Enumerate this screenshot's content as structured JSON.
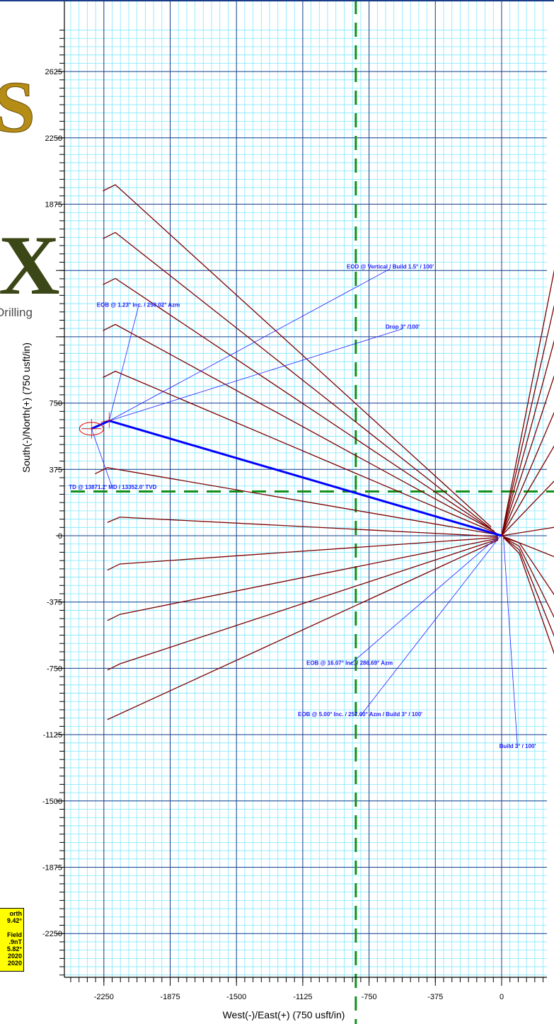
{
  "chart_data": {
    "type": "line",
    "title": "",
    "xlabel": "West(-)/East(+) (750 usft/in)",
    "ylabel": "South(-)/North(+) (750 usft/in)",
    "xlim": [
      -2400,
      375
    ],
    "ylim": [
      -2500,
      2800
    ],
    "x_ticks": [
      -2250,
      -1875,
      -1500,
      -1125,
      -750,
      -375,
      0
    ],
    "x_tick_labels": [
      "-2250",
      "-1875",
      "-1500",
      "-1125",
      "-750",
      "-375",
      "0"
    ],
    "y_ticks": [
      2625,
      2250,
      1875,
      750,
      375,
      0,
      -375,
      -750,
      -1125,
      -1500,
      -1875,
      -2250
    ],
    "y_tick_labels": [
      "2625",
      "2250",
      "1875",
      "750",
      "375",
      "0",
      "-375",
      "-750",
      "-1125",
      "-1500",
      "-1875",
      "-2250"
    ],
    "grid": true,
    "grid_colors": {
      "minor": "#7fe7ff",
      "major": "#1a3d8a"
    },
    "main_well": {
      "color": "#0000ff",
      "x": [
        0,
        -2220,
        -2320
      ],
      "y": [
        0,
        650,
        605
      ]
    },
    "offset_wells": {
      "color": "#7b0000",
      "wells": [
        {
          "x": [
            -60,
            -2185,
            -2255
          ],
          "y": [
            50,
            1985,
            1950
          ]
        },
        {
          "x": [
            -60,
            -2185,
            -2255
          ],
          "y": [
            40,
            1715,
            1680
          ]
        },
        {
          "x": [
            -50,
            -2185,
            -2255
          ],
          "y": [
            30,
            1455,
            1420
          ]
        },
        {
          "x": [
            -40,
            -2185,
            -2255
          ],
          "y": [
            25,
            1195,
            1160
          ]
        },
        {
          "x": [
            -30,
            -2185,
            -2255
          ],
          "y": [
            15,
            930,
            895
          ]
        },
        {
          "x": [
            -20,
            -2230,
            -2300
          ],
          "y": [
            5,
            385,
            350
          ]
        },
        {
          "x": [
            -20,
            -2160,
            -2230
          ],
          "y": [
            -5,
            105,
            75
          ]
        },
        {
          "x": [
            -20,
            -2160,
            -2230
          ],
          "y": [
            -10,
            -160,
            -195
          ]
        },
        {
          "x": [
            -20,
            -2160,
            -2230
          ],
          "y": [
            -15,
            -445,
            -480
          ]
        },
        {
          "x": [
            -20,
            -2160,
            -2230
          ],
          "y": [
            -20,
            -725,
            -760
          ]
        },
        {
          "x": [
            -20,
            -2230
          ],
          "y": [
            -25,
            -1040
          ]
        },
        {
          "x": [
            0,
            375
          ],
          "y": [
            0,
            1890
          ]
        },
        {
          "x": [
            0,
            375
          ],
          "y": [
            0,
            1640
          ]
        },
        {
          "x": [
            0,
            375
          ],
          "y": [
            0,
            1390
          ]
        },
        {
          "x": [
            0,
            375
          ],
          "y": [
            0,
            1140
          ]
        },
        {
          "x": [
            0,
            375
          ],
          "y": [
            0,
            880
          ]
        },
        {
          "x": [
            0,
            375
          ],
          "y": [
            0,
            640
          ]
        },
        {
          "x": [
            0,
            375
          ],
          "y": [
            0,
            390
          ]
        },
        {
          "x": [
            0,
            375
          ],
          "y": [
            0,
            60
          ]
        },
        {
          "x": [
            0,
            375
          ],
          "y": [
            0,
            -150
          ]
        },
        {
          "x": [
            10,
            100,
            375
          ],
          "y": [
            -10,
            -40,
            -450
          ]
        },
        {
          "x": [
            10,
            100,
            375
          ],
          "y": [
            -10,
            -60,
            -620
          ]
        },
        {
          "x": [
            10,
            100,
            375
          ],
          "y": [
            -10,
            -80,
            -760
          ]
        },
        {
          "x": [
            10,
            100,
            375
          ],
          "y": [
            -10,
            -100,
            -890
          ]
        }
      ]
    },
    "lease_lines": {
      "color": "#12901b",
      "vertical_x": -825,
      "horizontal_y": 250
    },
    "annotations": [
      {
        "text": "EOD @ Vertical / Build 1.5° / 100'",
        "x": -630,
        "y": 1510,
        "lx": -2220,
        "ly": 650
      },
      {
        "text": "EOB @ 1.23° Inc. / 250.02° Azm",
        "x": -2055,
        "y": 1295,
        "lx": -2220,
        "ly": 650
      },
      {
        "text": "Drop 3° /100'",
        "x": -560,
        "y": 1170,
        "lx": -2220,
        "ly": 650
      },
      {
        "text": "TD @ 13871.2' MD / 13352.0' TVD",
        "x": -2200,
        "y": 265,
        "lx": -2320,
        "ly": 605
      },
      {
        "text": "EOB @ 16.07° Inc. / 286.69° Azm",
        "x": -860,
        "y": -730,
        "lx": -20,
        "ly": -5
      },
      {
        "text": "EOB @ 5.00° Inc. / 257.00° Azm / Build 3° / 100'",
        "x": -800,
        "y": -1020,
        "lx": -10,
        "ly": -5
      },
      {
        "text": "Build 3° / 100'",
        "x": 90,
        "y": -1200,
        "lx": 10,
        "ly": -5
      }
    ]
  },
  "logo": {
    "letter_top": "S",
    "letter_mid": "X",
    "word": "Drilling"
  },
  "info_box": {
    "lines": [
      "orth",
      "9.42°",
      "",
      "Field",
      ".9nT",
      "5.82°",
      "2020",
      "2020"
    ]
  }
}
